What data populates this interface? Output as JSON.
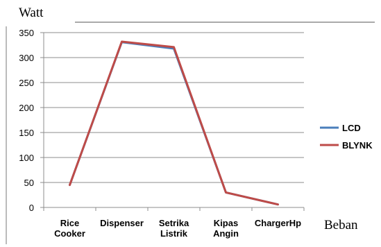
{
  "chart_data": {
    "type": "line",
    "ylabel": "Watt",
    "xlabel": "Beban",
    "categories": [
      [
        "Rice",
        "Cooker"
      ],
      [
        "Dispenser"
      ],
      [
        "Setrika",
        "Listrik"
      ],
      [
        "Kipas",
        "Angin"
      ],
      [
        "ChargerHp"
      ]
    ],
    "ylim": [
      0,
      350
    ],
    "yticks": [
      0,
      50,
      100,
      150,
      200,
      250,
      300,
      350
    ],
    "grid": true,
    "legend_position": "right",
    "series": [
      {
        "name": "LCD",
        "color": "#4a7ebb",
        "values": [
          45,
          331,
          318,
          30,
          6
        ]
      },
      {
        "name": "BLYNK",
        "color": "#be4b48",
        "values": [
          45,
          332,
          321,
          30,
          6
        ]
      }
    ]
  }
}
